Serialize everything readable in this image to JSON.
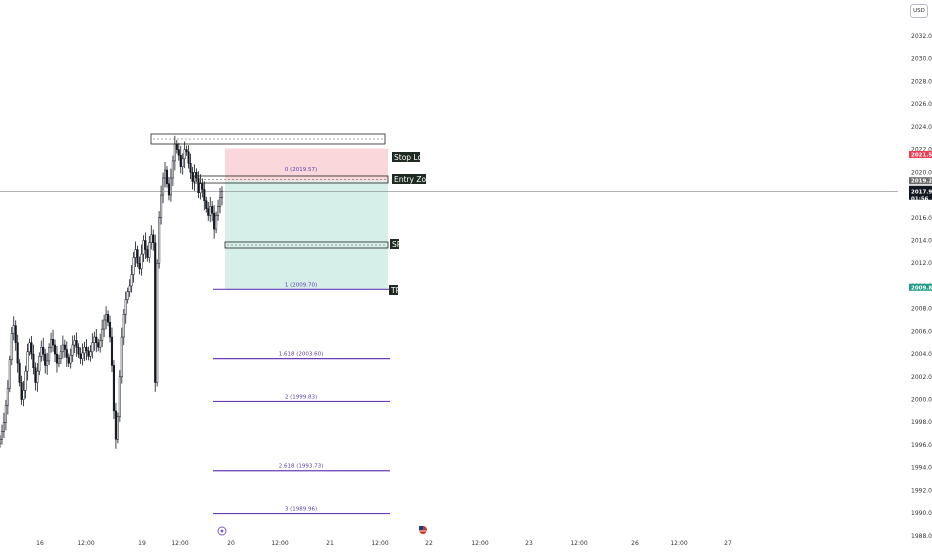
{
  "header": {
    "currency_label": "USD"
  },
  "colors": {
    "candle": "#131722",
    "crosshair": "#9598a1",
    "fib_line": "#6a3fb6",
    "stop_zone": "#f9d7da",
    "target_zone": "#d6efe9",
    "stop_badge": "#ef3b52",
    "entry_badge": "#6b6b6b",
    "current_badge": "#131722",
    "tp_badge": "#1e9e86",
    "tag_bg": "#1e2a22"
  },
  "price_axis": {
    "ticks": [
      "2032.00",
      "2030.00",
      "2028.00",
      "2026.00",
      "2024.00",
      "2022.00",
      "2020.00",
      "2018.00",
      "2016.00",
      "2014.00",
      "2012.00",
      "2010.00",
      "2008.00",
      "2006.00",
      "2004.00",
      "2002.00",
      "2000.00",
      "1998.00",
      "1996.00",
      "1994.00",
      "1992.00",
      "1990.00",
      "1988.00"
    ],
    "badges": {
      "stop": "2021.57",
      "entry": "2019.26",
      "current_price": "2017.99",
      "current_countdown": "01:56",
      "tp": "2009.88"
    }
  },
  "time_axis": {
    "labels": [
      "16",
      "12:00",
      "19",
      "12:00",
      "20",
      "12:00",
      "21",
      "12:00",
      "22",
      "12:00",
      "23",
      "12:00",
      "26",
      "12:00",
      "27"
    ]
  },
  "annotations": {
    "stop_loss": "Stop Loss",
    "entry_zone": "Entry Zone",
    "sp": "SP",
    "tp": "TP"
  },
  "fib_levels": [
    {
      "label": "0 (2019.57)",
      "price": 2019.57
    },
    {
      "label": "1 (2009.70)",
      "price": 2009.7
    },
    {
      "label": "1.618 (2003.60)",
      "price": 2003.6
    },
    {
      "label": "2 (1999.83)",
      "price": 1999.83
    },
    {
      "label": "2.618 (1993.73)",
      "price": 1993.73
    },
    {
      "label": "3 (1989.96)",
      "price": 1989.96
    }
  ],
  "chart_data": {
    "type": "candlestick",
    "title": "",
    "xlabel": "",
    "ylabel": "",
    "ylim": [
      1988,
      2033
    ],
    "x_labels": [
      "16",
      "12:00",
      "19",
      "12:00",
      "20",
      "12:00",
      "21",
      "12:00",
      "22",
      "12:00",
      "23",
      "12:00",
      "26",
      "12:00",
      "27"
    ],
    "y_ticks": [
      2032,
      2030,
      2028,
      2026,
      2024,
      2022,
      2020,
      2018,
      2016,
      2014,
      2012,
      2010,
      2008,
      2006,
      2004,
      2002,
      2000,
      1998,
      1996,
      1994,
      1992,
      1990,
      1988
    ],
    "series": [
      {
        "values_close": [
          1996.5,
          1997.2,
          1998.0,
          1999.5,
          2001.0,
          2003.5,
          2005.8,
          2006.5,
          2005.0,
          2003.2,
          2001.5,
          2000.0,
          2000.8,
          2002.5,
          2004.2,
          2005.0,
          2004.0,
          2002.8,
          2001.5,
          2002.5,
          2003.8,
          2004.6,
          2004.0,
          2003.0,
          2003.4,
          2004.6,
          2005.3,
          2004.8,
          2004.0,
          2003.2,
          2003.6,
          2004.2,
          2004.8,
          2004.4,
          2003.7,
          2003.2,
          2003.9,
          2004.8,
          2005.2,
          2004.6,
          2004.0,
          2003.6,
          2004.1,
          2004.6,
          2004.3,
          2003.8,
          2004.2,
          2005.0,
          2005.5,
          2005.0,
          2004.6,
          2005.2,
          2006.2,
          2007.0,
          2007.5,
          2006.8,
          2005.5,
          2003.0,
          1999.0,
          1996.5,
          1998.5,
          2002.0,
          2005.5,
          2007.5,
          2008.8,
          2009.5,
          2010.0,
          2011.0,
          2012.5,
          2013.2,
          2012.0,
          2011.5,
          2012.8,
          2014.0,
          2013.2,
          2012.5,
          2013.8,
          2014.5,
          2013.8,
          2001.5,
          2012.0,
          2016.0,
          2018.0,
          2019.5,
          2020.2,
          2019.0,
          2018.0,
          2019.5,
          2021.0,
          2022.5,
          2022.0,
          2021.5,
          2020.5,
          2021.2,
          2022.0,
          2021.8,
          2020.8,
          2020.0,
          2019.2,
          2020.0,
          2019.5,
          2018.2,
          2019.0,
          2018.5,
          2017.5,
          2016.8,
          2016.2,
          2017.0,
          2016.4,
          2015.0,
          2016.2,
          2017.0,
          2017.8,
          2018.3
        ],
        "annotation": "Values are approximate price readings per candle (close), ~20-minute bars from 16 to 19/20."
      }
    ],
    "levels": {
      "stop_loss": 2021.57,
      "entry_zone": 2019.26,
      "current_price": 2017.99,
      "take_profit": 2009.88
    }
  }
}
